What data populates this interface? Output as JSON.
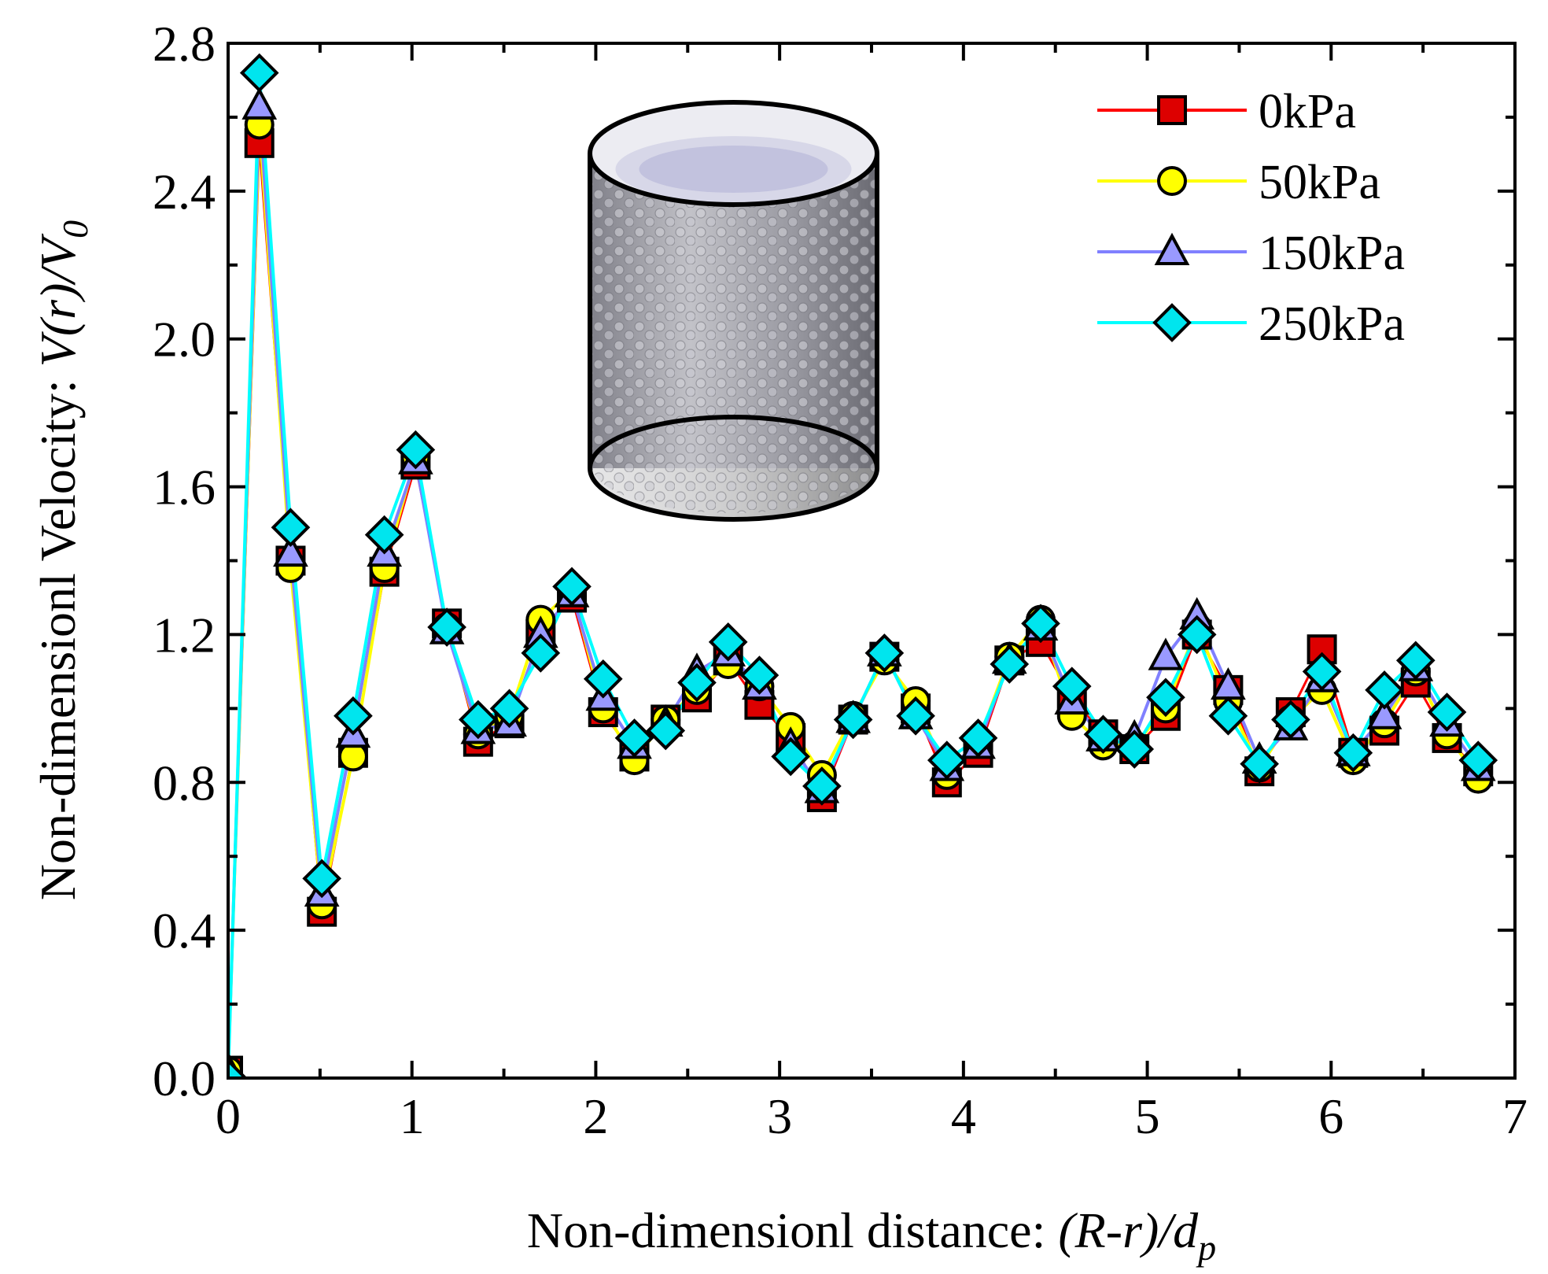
{
  "chart_data": {
    "type": "line",
    "title": "",
    "xlabel_prefix": "Non-dimensionl distance: ",
    "xlabel_math": "(R-r)/d",
    "xlabel_sub": "p",
    "ylabel_prefix": "Non-dimensionl Velocity: ",
    "ylabel_math": "V(r)/V",
    "ylabel_sub": "0",
    "xlim": [
      0,
      7
    ],
    "ylim": [
      0,
      2.8
    ],
    "xticks": [
      0,
      1,
      2,
      3,
      4,
      5,
      6,
      7
    ],
    "yticks": [
      0.0,
      0.4,
      0.8,
      1.2,
      1.6,
      2.0,
      2.4,
      2.8
    ],
    "xtick_labels": [
      "0",
      "1",
      "2",
      "3",
      "4",
      "5",
      "6",
      "7"
    ],
    "ytick_labels": [
      "0.0",
      "0.4",
      "0.8",
      "1.2",
      "1.6",
      "2.0",
      "2.4",
      "2.8"
    ],
    "legend_position": "top-right",
    "inset": "cylindrical packed bed of spheres",
    "x": [
      0,
      0.17,
      0.34,
      0.51,
      0.68,
      0.85,
      1.02,
      1.19,
      1.36,
      1.53,
      1.7,
      1.87,
      2.04,
      2.21,
      2.38,
      2.55,
      2.72,
      2.89,
      3.06,
      3.23,
      3.4,
      3.57,
      3.74,
      3.91,
      4.08,
      4.25,
      4.42,
      4.59,
      4.76,
      4.93,
      5.1,
      5.27,
      5.44,
      5.61,
      5.78,
      5.95,
      6.12,
      6.29,
      6.46,
      6.63,
      6.8
    ],
    "series": [
      {
        "name": "0kPa",
        "color": "#ff0000",
        "marker": "square",
        "marker_fill": "#dd0000",
        "values": [
          0.02,
          2.53,
          1.4,
          0.45,
          0.88,
          1.37,
          1.66,
          1.23,
          0.91,
          0.96,
          1.2,
          1.3,
          0.99,
          0.87,
          0.97,
          1.03,
          1.13,
          1.01,
          0.92,
          0.76,
          0.97,
          1.14,
          1.0,
          0.8,
          0.88,
          1.13,
          1.18,
          1.03,
          0.93,
          0.89,
          0.98,
          1.2,
          1.05,
          0.83,
          0.99,
          1.16,
          0.88,
          0.94,
          1.07,
          0.92,
          0.83
        ]
      },
      {
        "name": "50kPa",
        "color": "#ffff00",
        "marker": "circle",
        "marker_fill": "#ffff00",
        "values": [
          0.02,
          2.58,
          1.38,
          0.47,
          0.87,
          1.38,
          1.68,
          1.22,
          0.93,
          0.98,
          1.24,
          1.32,
          1.0,
          0.86,
          0.97,
          1.05,
          1.12,
          1.06,
          0.95,
          0.82,
          0.98,
          1.13,
          1.02,
          0.82,
          0.91,
          1.14,
          1.24,
          0.98,
          0.9,
          0.9,
          1.0,
          1.22,
          1.02,
          0.84,
          0.97,
          1.05,
          0.86,
          0.96,
          1.1,
          0.93,
          0.81
        ]
      },
      {
        "name": "150kPa",
        "color": "#8080ff",
        "marker": "triangle",
        "marker_fill": "#9999ff",
        "values": [
          0.02,
          2.63,
          1.42,
          0.5,
          0.93,
          1.42,
          1.67,
          1.21,
          0.94,
          0.96,
          1.2,
          1.31,
          1.03,
          0.9,
          0.96,
          1.1,
          1.15,
          1.06,
          0.9,
          0.78,
          0.97,
          1.15,
          0.98,
          0.84,
          0.9,
          1.13,
          1.22,
          1.02,
          0.92,
          0.92,
          1.14,
          1.25,
          1.06,
          0.86,
          0.95,
          1.08,
          0.88,
          0.98,
          1.11,
          0.96,
          0.84
        ]
      },
      {
        "name": "250kPa",
        "color": "#00ffff",
        "marker": "diamond",
        "marker_fill": "#00e5ee",
        "values": [
          0.0,
          2.72,
          1.49,
          0.54,
          0.98,
          1.47,
          1.7,
          1.22,
          0.97,
          1.0,
          1.15,
          1.33,
          1.08,
          0.92,
          0.94,
          1.07,
          1.18,
          1.09,
          0.87,
          0.79,
          0.97,
          1.15,
          0.98,
          0.86,
          0.92,
          1.12,
          1.23,
          1.06,
          0.93,
          0.89,
          1.03,
          1.2,
          0.98,
          0.85,
          0.97,
          1.1,
          0.88,
          1.05,
          1.13,
          0.99,
          0.86
        ]
      }
    ]
  }
}
